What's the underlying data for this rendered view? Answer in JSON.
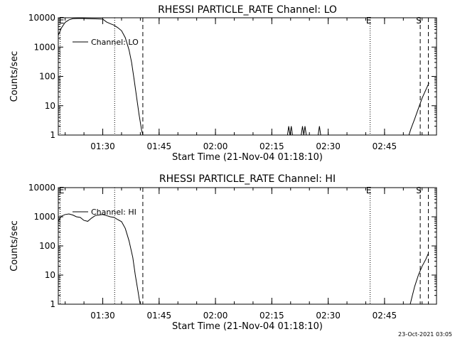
{
  "footer_timestamp": "23-Oct-2021 03:05",
  "chart_data": [
    {
      "type": "line",
      "title": "RHESSI PARTICLE_RATE Channel: LO",
      "xlabel": "Start Time (21-Nov-04 01:18:10)",
      "ylabel": "Counts/sec",
      "yscale": "log",
      "ylim": [
        1,
        10000
      ],
      "xlim": [
        "01:18:10",
        "02:58:50"
      ],
      "x_ticks": [
        "01:30",
        "01:45",
        "02:00",
        "02:15",
        "02:30",
        "02:45"
      ],
      "y_ticks": [
        "1",
        "10",
        "100",
        "1000",
        "10000"
      ],
      "legend": {
        "placement": "top-left",
        "entries": [
          "Channel: LO"
        ]
      },
      "markers": [
        {
          "label": "E",
          "time": "01:18:40",
          "style": "dotted"
        },
        {
          "label": "",
          "time": "01:33:10",
          "style": "dotted"
        },
        {
          "label": "",
          "time": "01:40:40",
          "style": "dashed"
        },
        {
          "label": "E",
          "time": "02:41:10",
          "style": "dotted"
        },
        {
          "label": "S",
          "time": "02:54:30",
          "style": "dashed"
        },
        {
          "label": "",
          "time": "02:56:40",
          "style": "dashed"
        }
      ],
      "series": [
        {
          "name": "Channel: LO",
          "segments": [
            [
              [
                "01:18:10",
                2500
              ],
              [
                "01:19:00",
                4500
              ],
              [
                "01:20:00",
                7000
              ],
              [
                "01:21:00",
                8500
              ],
              [
                "01:22:00",
                9300
              ],
              [
                "01:24:00",
                9500
              ],
              [
                "01:26:00",
                9300
              ],
              [
                "01:28:00",
                9200
              ],
              [
                "01:30:00",
                9000
              ],
              [
                "01:31:00",
                7200
              ],
              [
                "01:32:00",
                6300
              ],
              [
                "01:33:00",
                5600
              ],
              [
                "01:34:00",
                4600
              ],
              [
                "01:35:00",
                3600
              ],
              [
                "01:36:00",
                2100
              ],
              [
                "01:37:00",
                800
              ],
              [
                "01:37:40",
                300
              ],
              [
                "01:38:20",
                80
              ],
              [
                "01:39:00",
                20
              ],
              [
                "01:39:40",
                5
              ],
              [
                "01:40:20",
                1.5
              ],
              [
                "01:40:40",
                1
              ]
            ],
            [
              [
                "02:19:10",
                1
              ],
              [
                "02:19:30",
                2
              ],
              [
                "02:19:50",
                1
              ],
              [
                "02:20:10",
                2
              ],
              [
                "02:20:30",
                1
              ]
            ],
            [
              [
                "02:22:50",
                1
              ],
              [
                "02:23:10",
                2
              ],
              [
                "02:23:30",
                1
              ],
              [
                "02:23:50",
                2
              ],
              [
                "02:24:10",
                1
              ]
            ],
            [
              [
                "02:27:20",
                1
              ],
              [
                "02:27:40",
                2
              ],
              [
                "02:28:00",
                1
              ]
            ],
            [
              [
                "02:51:30",
                1
              ],
              [
                "02:52:00",
                1.6
              ],
              [
                "02:53:00",
                3.5
              ],
              [
                "02:54:00",
                8
              ],
              [
                "02:55:00",
                18
              ],
              [
                "02:56:00",
                35
              ],
              [
                "02:56:50",
                60
              ]
            ]
          ]
        }
      ]
    },
    {
      "type": "line",
      "title": "RHESSI PARTICLE_RATE Channel: HI",
      "xlabel": "Start Time (21-Nov-04 01:18:10)",
      "ylabel": "Counts/sec",
      "yscale": "log",
      "ylim": [
        1,
        10000
      ],
      "xlim": [
        "01:18:10",
        "02:58:50"
      ],
      "x_ticks": [
        "01:30",
        "01:45",
        "02:00",
        "02:15",
        "02:30",
        "02:45"
      ],
      "y_ticks": [
        "1",
        "10",
        "100",
        "1000",
        "10000"
      ],
      "legend": {
        "placement": "top-left",
        "entries": [
          "Channel: HI"
        ]
      },
      "markers": [
        {
          "label": "E",
          "time": "01:18:40",
          "style": "dotted"
        },
        {
          "label": "",
          "time": "01:33:10",
          "style": "dotted"
        },
        {
          "label": "",
          "time": "01:40:40",
          "style": "dashed"
        },
        {
          "label": "E",
          "time": "02:41:10",
          "style": "dotted"
        },
        {
          "label": "S",
          "time": "02:54:30",
          "style": "dashed"
        },
        {
          "label": "",
          "time": "02:56:40",
          "style": "dashed"
        }
      ],
      "series": [
        {
          "name": "Channel: HI",
          "segments": [
            [
              [
                "01:18:10",
                700
              ],
              [
                "01:19:00",
                1050
              ],
              [
                "01:20:00",
                1200
              ],
              [
                "01:21:00",
                1250
              ],
              [
                "01:22:00",
                1150
              ],
              [
                "01:23:00",
                1000
              ],
              [
                "01:24:00",
                950
              ],
              [
                "01:25:00",
                750
              ],
              [
                "01:26:00",
                700
              ],
              [
                "01:27:00",
                900
              ],
              [
                "01:28:00",
                1100
              ],
              [
                "01:29:00",
                1150
              ],
              [
                "01:30:00",
                1200
              ],
              [
                "01:31:00",
                1100
              ],
              [
                "01:32:00",
                1000
              ],
              [
                "01:33:00",
                950
              ],
              [
                "01:34:00",
                800
              ],
              [
                "01:35:00",
                680
              ],
              [
                "01:36:00",
                400
              ],
              [
                "01:37:00",
                150
              ],
              [
                "01:38:00",
                40
              ],
              [
                "01:38:40",
                10
              ],
              [
                "01:39:20",
                3
              ],
              [
                "01:39:50",
                1.2
              ],
              [
                "01:40:00",
                1
              ]
            ],
            [
              [
                "02:51:50",
                1
              ],
              [
                "02:52:20",
                1.8
              ],
              [
                "02:53:00",
                4
              ],
              [
                "02:54:00",
                10
              ],
              [
                "02:55:00",
                20
              ],
              [
                "02:56:00",
                35
              ],
              [
                "02:56:40",
                55
              ]
            ]
          ]
        }
      ]
    }
  ]
}
